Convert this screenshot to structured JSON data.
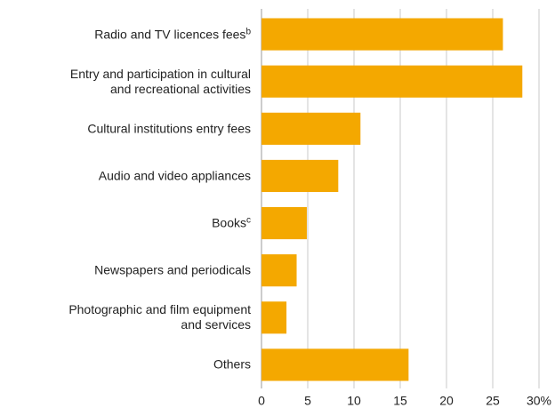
{
  "chart_data": {
    "type": "bar",
    "orientation": "horizontal",
    "categories": [
      "Radio and TV licences fees",
      "Entry and participation in cultural\nand recreational activities",
      "Cultural institutions entry fees",
      "Audio and video appliances",
      "Books",
      "Newspapers and periodicals",
      "Photographic and film equipment\nand services",
      "Others"
    ],
    "category_notes": {
      "0": "b",
      "4": "c"
    },
    "values": [
      26.1,
      28.2,
      10.7,
      8.3,
      4.9,
      3.8,
      2.7,
      15.9
    ],
    "color": "#f4a800",
    "xlim": [
      0,
      30
    ],
    "xticks": [
      0,
      5,
      10,
      15,
      20,
      25,
      {
        "value": 30,
        "label": "30%"
      }
    ],
    "grid": true
  }
}
